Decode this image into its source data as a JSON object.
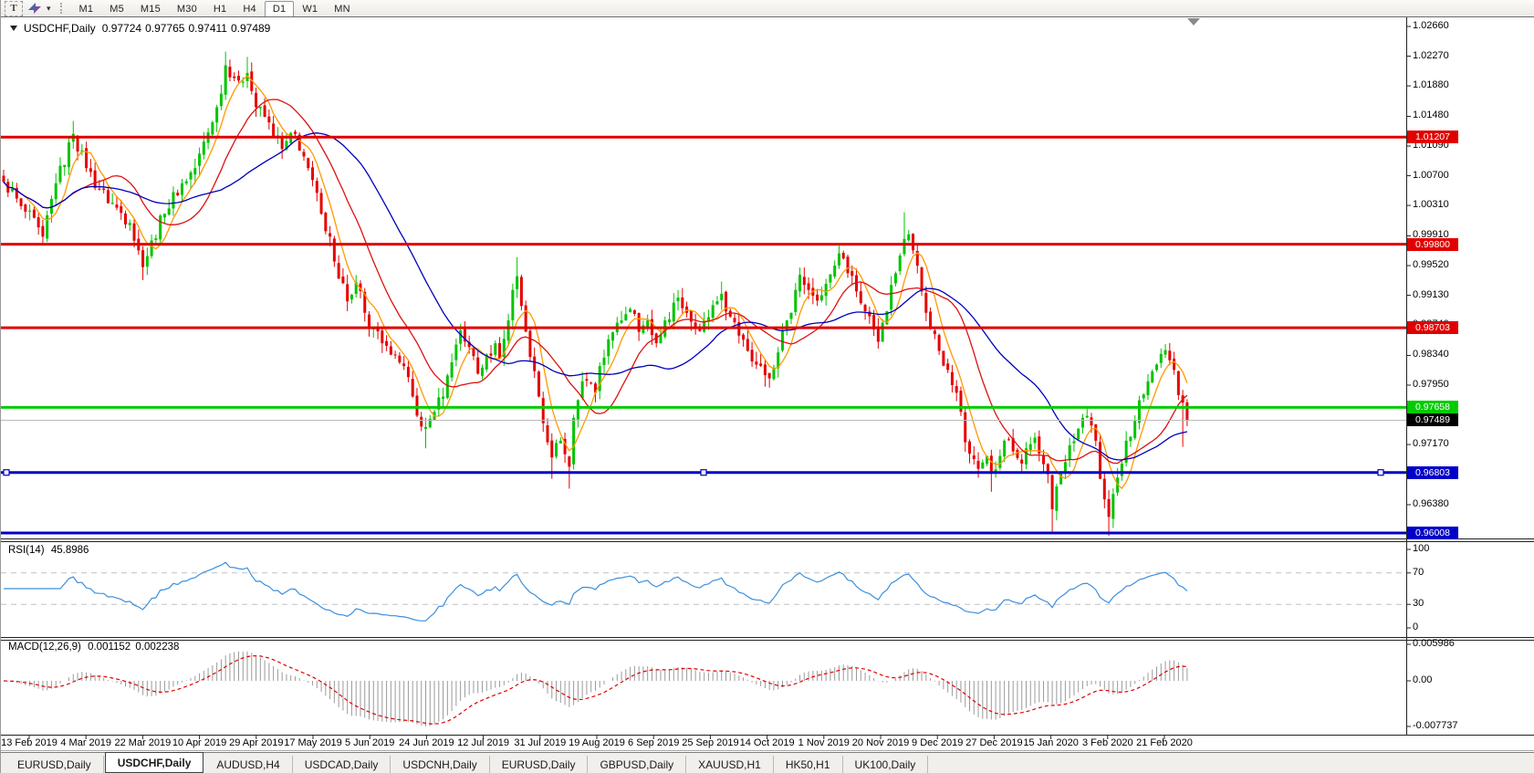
{
  "toolbar": {
    "text_tool_label": "T",
    "timeframes": [
      "M1",
      "M5",
      "M15",
      "M30",
      "H1",
      "H4",
      "D1",
      "W1",
      "MN"
    ],
    "active_timeframe": "D1"
  },
  "chart": {
    "title": {
      "symbol": "USDCHF,Daily",
      "open": "0.97724",
      "high": "0.97765",
      "low": "0.97411",
      "close": "0.97489"
    },
    "price_axis_ticks": [
      {
        "label": "1.02660",
        "price": 1.0266
      },
      {
        "label": "1.02270",
        "price": 1.0227
      },
      {
        "label": "1.01880",
        "price": 1.0188
      },
      {
        "label": "1.01480",
        "price": 1.0148
      },
      {
        "label": "1.01090",
        "price": 1.0109
      },
      {
        "label": "1.00700",
        "price": 1.007
      },
      {
        "label": "1.00310",
        "price": 1.0031
      },
      {
        "label": "0.99910",
        "price": 0.9991
      },
      {
        "label": "0.99520",
        "price": 0.9952
      },
      {
        "label": "0.99130",
        "price": 0.9913
      },
      {
        "label": "0.98740",
        "price": 0.9874
      },
      {
        "label": "0.98340",
        "price": 0.9834
      },
      {
        "label": "0.97950",
        "price": 0.9795
      },
      {
        "label": "0.97560",
        "price": 0.9756
      },
      {
        "label": "0.97170",
        "price": 0.9717
      },
      {
        "label": "0.96780",
        "price": 0.9678
      },
      {
        "label": "0.96380",
        "price": 0.9638
      },
      {
        "label": "0.95990",
        "price": 0.9599
      }
    ]
  },
  "chart_data": {
    "type": "candlestick",
    "symbol": "USDCHF",
    "period": "Daily",
    "up_color": "#00c400",
    "down_color": "#e60000",
    "candle_count": 273,
    "price_anchors": [
      [
        0,
        1.0062
      ],
      [
        4,
        1.003
      ],
      [
        9,
        0.999
      ],
      [
        12,
        1.006
      ],
      [
        16,
        1.0125
      ],
      [
        19,
        1.008
      ],
      [
        22,
        1.0052
      ],
      [
        26,
        1.0028
      ],
      [
        29,
        1.0008
      ],
      [
        32,
        0.995
      ],
      [
        34,
        0.9985
      ],
      [
        37,
        1.002
      ],
      [
        41,
        1.006
      ],
      [
        44,
        1.008
      ],
      [
        49,
        1.016
      ],
      [
        51,
        1.0215
      ],
      [
        54,
        1.0195
      ],
      [
        56,
        1.0205
      ],
      [
        58,
        1.016
      ],
      [
        61,
        1.014
      ],
      [
        64,
        1.0105
      ],
      [
        67,
        1.0125
      ],
      [
        70,
        1.008
      ],
      [
        73,
        1.002
      ],
      [
        75,
        0.999
      ],
      [
        77,
        0.9935
      ],
      [
        79,
        0.9905
      ],
      [
        81,
        0.993
      ],
      [
        83,
        0.989
      ],
      [
        85,
        0.987
      ],
      [
        87,
        0.985
      ],
      [
        89,
        0.9835
      ],
      [
        92,
        0.982
      ],
      [
        94,
        0.978
      ],
      [
        95,
        0.9755
      ],
      [
        97,
        0.974
      ],
      [
        99,
        0.976
      ],
      [
        101,
        0.978
      ],
      [
        103,
        0.9825
      ],
      [
        105,
        0.9867
      ],
      [
        107,
        0.9845
      ],
      [
        109,
        0.981
      ],
      [
        111,
        0.9835
      ],
      [
        113,
        0.985
      ],
      [
        114,
        0.983
      ],
      [
        116,
        0.988
      ],
      [
        117,
        0.992
      ],
      [
        118,
        0.9938
      ],
      [
        120,
        0.9865
      ],
      [
        121,
        0.9832
      ],
      [
        123,
        0.978
      ],
      [
        124,
        0.9745
      ],
      [
        126,
        0.97
      ],
      [
        128,
        0.9722
      ],
      [
        130,
        0.9688
      ],
      [
        131,
        0.9752
      ],
      [
        133,
        0.98
      ],
      [
        136,
        0.9785
      ],
      [
        137,
        0.982
      ],
      [
        139,
        0.9855
      ],
      [
        142,
        0.988
      ],
      [
        144,
        0.9895
      ],
      [
        146,
        0.9865
      ],
      [
        148,
        0.988
      ],
      [
        150,
        0.985
      ],
      [
        152,
        0.988
      ],
      [
        155,
        0.991
      ],
      [
        157,
        0.989
      ],
      [
        159,
        0.987
      ],
      [
        161,
        0.988
      ],
      [
        163,
        0.99
      ],
      [
        165,
        0.9915
      ],
      [
        167,
        0.9885
      ],
      [
        169,
        0.986
      ],
      [
        171,
        0.984
      ],
      [
        173,
        0.9822
      ],
      [
        175,
        0.9808
      ],
      [
        177,
        0.9818
      ],
      [
        178,
        0.9838
      ],
      [
        180,
        0.988
      ],
      [
        182,
        0.992
      ],
      [
        183,
        0.994
      ],
      [
        185,
        0.992
      ],
      [
        187,
        0.9906
      ],
      [
        189,
        0.9928
      ],
      [
        191,
        0.9952
      ],
      [
        192,
        0.9968
      ],
      [
        194,
        0.9942
      ],
      [
        196,
        0.9918
      ],
      [
        198,
        0.9892
      ],
      [
        200,
        0.9868
      ],
      [
        201,
        0.9852
      ],
      [
        203,
        0.9892
      ],
      [
        205,
        0.9942
      ],
      [
        207,
        0.9987
      ],
      [
        208,
        0.9993
      ],
      [
        209,
        0.9972
      ],
      [
        211,
        0.9918
      ],
      [
        212,
        0.989
      ],
      [
        214,
        0.9862
      ],
      [
        215,
        0.984
      ],
      [
        217,
        0.9815
      ],
      [
        218,
        0.9795
      ],
      [
        219,
        0.9785
      ],
      [
        220,
        0.976
      ],
      [
        221,
        0.972
      ],
      [
        222,
        0.9705
      ],
      [
        223,
        0.9698
      ],
      [
        224,
        0.9685
      ],
      [
        226,
        0.9702
      ],
      [
        227,
        0.9682
      ],
      [
        229,
        0.9702
      ],
      [
        230,
        0.9722
      ],
      [
        232,
        0.9708
      ],
      [
        234,
        0.9692
      ],
      [
        235,
        0.9712
      ],
      [
        237,
        0.9726
      ],
      [
        238,
        0.9705
      ],
      [
        240,
        0.9678
      ],
      [
        241,
        0.9632
      ],
      [
        242,
        0.9662
      ],
      [
        244,
        0.9694
      ],
      [
        245,
        0.9716
      ],
      [
        247,
        0.9738
      ],
      [
        248,
        0.9752
      ],
      [
        250,
        0.9742
      ],
      [
        251,
        0.9722
      ],
      [
        252,
        0.9672
      ],
      [
        253,
        0.9645
      ],
      [
        254,
        0.9622
      ],
      [
        255,
        0.9652
      ],
      [
        257,
        0.9692
      ],
      [
        258,
        0.9722
      ],
      [
        260,
        0.9748
      ],
      [
        261,
        0.9775
      ],
      [
        263,
        0.98
      ],
      [
        265,
        0.9822
      ],
      [
        266,
        0.9836
      ],
      [
        267,
        0.9841
      ],
      [
        269,
        0.9815
      ],
      [
        270,
        0.9782
      ],
      [
        271,
        0.9772
      ],
      [
        272,
        0.97489
      ]
    ],
    "wick_overrides": [
      {
        "i": 16,
        "h": 1.0142
      },
      {
        "i": 32,
        "l": 0.9933
      },
      {
        "i": 51,
        "h": 1.0233
      },
      {
        "i": 56,
        "h": 1.0226
      },
      {
        "i": 97,
        "l": 0.9712
      },
      {
        "i": 118,
        "h": 0.9963
      },
      {
        "i": 126,
        "l": 0.9672
      },
      {
        "i": 130,
        "l": 0.9659
      },
      {
        "i": 165,
        "h": 0.9931
      },
      {
        "i": 175,
        "l": 0.9793
      },
      {
        "i": 192,
        "h": 0.9978
      },
      {
        "i": 201,
        "l": 0.9843
      },
      {
        "i": 207,
        "h": 1.0022
      },
      {
        "i": 227,
        "l": 0.9655
      },
      {
        "i": 241,
        "l": 0.9601
      },
      {
        "i": 254,
        "l": 0.9597
      },
      {
        "i": 267,
        "h": 0.9849
      },
      {
        "i": 271,
        "l": 0.9714
      }
    ],
    "last_candle": {
      "open": 0.97724,
      "high": 0.97765,
      "low": 0.97411,
      "close": 0.97489
    },
    "moving_averages": [
      {
        "period": 6,
        "color": "#ff9900"
      },
      {
        "period": 16,
        "color": "#dd1111"
      },
      {
        "period": 34,
        "color": "#0000bb"
      }
    ],
    "horizontal_lines": [
      {
        "price": 1.01207,
        "label": "1.01207",
        "color": "#e00000"
      },
      {
        "price": 0.998,
        "label": "0.99800",
        "color": "#e00000"
      },
      {
        "price": 0.98703,
        "label": "0.98703",
        "color": "#e00000"
      },
      {
        "price": 0.97658,
        "label": "0.97658",
        "color": "#00cc00"
      },
      {
        "price": 0.96803,
        "label": "0.96803",
        "color": "#0000c8",
        "selected": true
      },
      {
        "price": 0.96008,
        "label": "0.96008",
        "color": "#0000c8"
      }
    ],
    "current_price": {
      "price": 0.97489,
      "label": "0.97489",
      "line_color": "#bbbbbb",
      "badge_color": "#000000"
    }
  },
  "rsi": {
    "label": "RSI(14)",
    "value": "45.8986",
    "period": 14,
    "color": "#3c8fdc",
    "levels": [
      {
        "label": "100",
        "value": 100
      },
      {
        "label": "70",
        "value": 70,
        "dashed": true
      },
      {
        "label": "30",
        "value": 30,
        "dashed": true
      },
      {
        "label": "0",
        "value": 0
      }
    ]
  },
  "macd": {
    "label": "MACD(12,26,9)",
    "value_main": "0.001152",
    "value_signal": "0.002238",
    "fast": 12,
    "slow": 26,
    "signal": 9,
    "hist_color": "#9a9a9a",
    "signal_color": "#e00000",
    "axis_labels": [
      "0.005986",
      "0.00",
      "-0.007737"
    ]
  },
  "date_axis": {
    "labels": [
      "13 Feb 2019",
      "4 Mar 2019",
      "22 Mar 2019",
      "10 Apr 2019",
      "29 Apr 2019",
      "17 May 2019",
      "5 Jun 2019",
      "24 Jun 2019",
      "12 Jul 2019",
      "31 Jul 2019",
      "19 Aug 2019",
      "6 Sep 2019",
      "25 Sep 2019",
      "14 Oct 2019",
      "1 Nov 2019",
      "20 Nov 2019",
      "9 Dec 2019",
      "27 Dec 2019",
      "15 Jan 2020",
      "3 Feb 2020",
      "21 Feb 2020"
    ]
  },
  "tabs": {
    "items": [
      {
        "label": "EURUSD,Daily"
      },
      {
        "label": "USDCHF,Daily",
        "active": true
      },
      {
        "label": "AUDUSD,H4"
      },
      {
        "label": "USDCAD,Daily"
      },
      {
        "label": "USDCNH,Daily"
      },
      {
        "label": "EURUSD,Daily"
      },
      {
        "label": "GBPUSD,Daily"
      },
      {
        "label": "XAUUSD,H1"
      },
      {
        "label": "HK50,H1"
      },
      {
        "label": "UK100,Daily"
      }
    ]
  }
}
